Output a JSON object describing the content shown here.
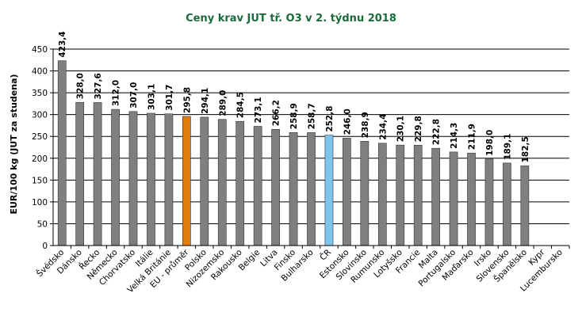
{
  "chart_data": {
    "type": "bar",
    "title": "Ceny krav JUT  tř. O3  v 2. týdnu 2018",
    "xlabel": "",
    "ylabel": "EUR/100 kg (JUT za studena)",
    "ylim": [
      0,
      450
    ],
    "yticks": [
      0,
      50,
      100,
      150,
      200,
      250,
      300,
      350,
      400,
      450
    ],
    "grid": true,
    "legend": "none",
    "categories": [
      "Švédsko",
      "Dánsko",
      "Řecko",
      "Německo",
      "Chorvatsko",
      "Itálie",
      "Velká Británie",
      "EU - průměr",
      "Polsko",
      "Nizozemsko",
      "Rakousko",
      "Belgie",
      "Litva",
      "Finsko",
      "Bulharsko",
      "ČR",
      "Estonsko",
      "Slovinsko",
      "Rumunsko",
      "Lotyšsko",
      "Francie",
      "Malta",
      "Portugalsko",
      "Maďarsko",
      "Irsko",
      "Slovensko",
      "Španělsko",
      "Kypr",
      "Lucembursko"
    ],
    "values": [
      423.4,
      328.0,
      327.6,
      312.0,
      307.0,
      303.1,
      301.7,
      295.8,
      294.1,
      289.0,
      284.5,
      273.1,
      266.2,
      258.9,
      258.7,
      252.8,
      246.0,
      238.9,
      234.4,
      230.1,
      229.8,
      222.8,
      214.3,
      211.9,
      198.0,
      189.1,
      182.5,
      null,
      null
    ],
    "value_labels": [
      "423,4",
      "328,0",
      "327,6",
      "312,0",
      "307,0",
      "303,1",
      "301,7",
      "295,8",
      "294,1",
      "289,0",
      "284,5",
      "273,1",
      "266,2",
      "258,9",
      "258,7",
      "252,8",
      "246,0",
      "238,9",
      "234,4",
      "230,1",
      "229,8",
      "222,8",
      "214,3",
      "211,9",
      "198,0",
      "189,1",
      "182,5",
      "",
      ""
    ],
    "colors": {
      "default": "#7f7f7f",
      "highlight_eu": "#e07b0c",
      "highlight_cr": "#7fc4ee",
      "gridline": "#000000"
    },
    "highlight": {
      "EU - průměr": "highlight_eu",
      "ČR": "highlight_cr"
    }
  }
}
